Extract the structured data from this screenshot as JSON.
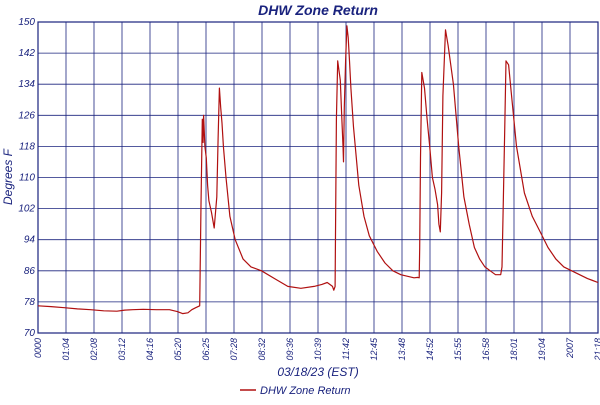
{
  "colors": {
    "axis": "#1a237e",
    "grid": "#1a237e",
    "text": "#1a237e",
    "series": "#b01010",
    "background": "#ffffff"
  },
  "chart_data": {
    "type": "line",
    "title": "DHW Zone Return",
    "xlabel": "03/18/23 (EST)",
    "ylabel": "Degrees F",
    "ylim": [
      70,
      150
    ],
    "yticks": [
      70,
      78,
      86,
      94,
      102,
      110,
      118,
      126,
      134,
      142,
      150
    ],
    "xlim_hours": [
      0,
      21.3
    ],
    "xticks": [
      "0000",
      "01:04",
      "02:08",
      "03:12",
      "04:16",
      "05:20",
      "06:25",
      "07:28",
      "08:32",
      "09:36",
      "10:39",
      "11:42",
      "12:45",
      "13:48",
      "14:52",
      "15:55",
      "16:58",
      "18:01",
      "19:04",
      "2007",
      "21:18"
    ],
    "grid": true,
    "legend_position": "bottom-center",
    "series": [
      {
        "name": "DHW Zone Return",
        "x_hours": [
          0,
          0.5,
          1.0,
          1.5,
          2.0,
          2.5,
          3.0,
          3.3,
          3.6,
          4.0,
          4.5,
          5.0,
          5.3,
          5.5,
          5.7,
          5.85,
          6.0,
          6.15,
          6.2,
          6.25,
          6.28,
          6.3,
          6.35,
          6.4,
          6.45,
          6.5,
          6.6,
          6.7,
          6.8,
          6.85,
          6.9,
          6.95,
          7.0,
          7.05,
          7.15,
          7.3,
          7.5,
          7.8,
          8.1,
          8.5,
          9.0,
          9.5,
          10.0,
          10.5,
          10.8,
          11.0,
          11.1,
          11.2,
          11.25,
          11.3,
          11.35,
          11.4,
          11.5,
          11.55,
          11.6,
          11.62,
          11.65,
          11.7,
          11.75,
          11.8,
          11.85,
          11.9,
          12.0,
          12.2,
          12.4,
          12.6,
          12.9,
          13.2,
          13.5,
          13.8,
          14.1,
          14.3,
          14.45,
          14.5,
          14.52,
          14.55,
          14.6,
          14.7,
          14.8,
          14.9,
          15.0,
          15.1,
          15.2,
          15.25,
          15.3,
          15.35,
          15.4,
          15.5,
          15.6,
          15.8,
          16.0,
          16.2,
          16.4,
          16.6,
          16.8,
          17.0,
          17.2,
          17.4,
          17.6,
          17.65,
          17.7,
          17.75,
          17.8,
          17.9,
          18.0,
          18.2,
          18.5,
          18.8,
          19.1,
          19.4,
          19.7,
          20.0,
          20.3,
          20.6,
          20.9,
          21.1,
          21.3
        ],
        "y": [
          77,
          76.8,
          76.5,
          76.2,
          76.0,
          75.7,
          75.6,
          75.9,
          76.0,
          76.1,
          76.0,
          76.0,
          75.5,
          75.0,
          75.2,
          76.0,
          76.5,
          77.0,
          103,
          125,
          119,
          126,
          118,
          115,
          108,
          104,
          101,
          97,
          105,
          120,
          133,
          128,
          124,
          118,
          110,
          100,
          94,
          89,
          87,
          86,
          84,
          82,
          81.5,
          82,
          82.5,
          83,
          82.5,
          82,
          81,
          82,
          125,
          140,
          135,
          126,
          118,
          114,
          128,
          140,
          149,
          146,
          140,
          133,
          123,
          108,
          100,
          95,
          91,
          88,
          86,
          85,
          84.5,
          84.2,
          84.3,
          84.2,
          92,
          115,
          137,
          133,
          125,
          118,
          110,
          107,
          103,
          98,
          96,
          106,
          131,
          148,
          144,
          134,
          118,
          105,
          98,
          92,
          89,
          87,
          86,
          85,
          85,
          87,
          105,
          122,
          140,
          139,
          132,
          118,
          106,
          100,
          96,
          92,
          89,
          87,
          86,
          85,
          84,
          83.5,
          83
        ]
      }
    ]
  }
}
